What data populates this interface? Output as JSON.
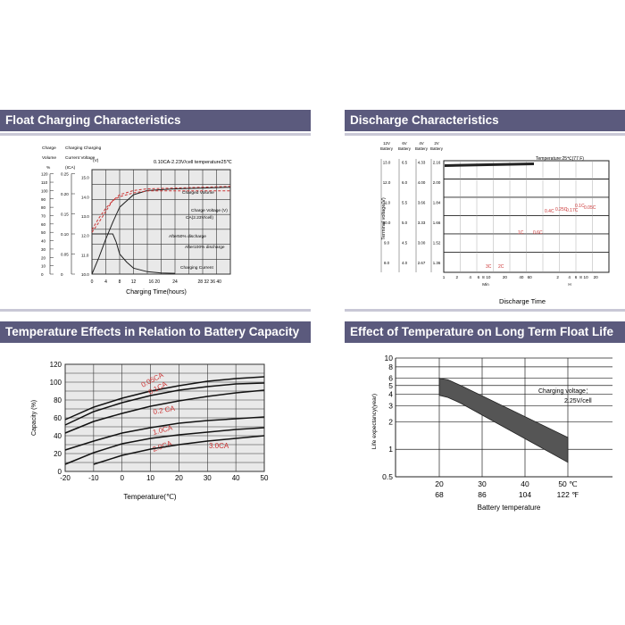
{
  "panels": [
    {
      "title": "Float Charging Characteristics",
      "chart_data": {
        "type": "line",
        "title": "0.10CA-2.23V/cell temperature25℃",
        "xlabel": "Charging Time(hours)",
        "x_ticks": [
          "0",
          "4",
          "8",
          "12",
          "16",
          "20",
          "24",
          "28",
          "32",
          "36",
          "40"
        ],
        "x_tick_labels": [
          "0",
          "4",
          "8",
          "12",
          "16 20",
          "24",
          "28 32 36 40"
        ],
        "left_axes": [
          {
            "label": [
              "Charge",
              "Volume",
              "%"
            ],
            "ticks": [
              "120",
              "110",
              "100",
              "90",
              "80",
              "70",
              "60",
              "50",
              "40",
              "30",
              "20",
              "10",
              "0"
            ]
          },
          {
            "label": [
              "Charging Charging",
              "Current Voltage",
              "(ICA)"
            ],
            "ticks": [
              "0.25",
              "0.20",
              "0.15",
              "0.10",
              "0.05",
              "0"
            ]
          },
          {
            "label": [
              "(V)"
            ],
            "ticks": [
              "15.0",
              "14.0",
              "13.0",
              "12.0",
              "11.0",
              "10.0"
            ]
          }
        ],
        "annotations": [
          "Charged Volume",
          "Charge Voltage (V)",
          "CA(2.23V/cell)",
          "After50% discharge",
          "After100% discharge",
          "Charging Current"
        ],
        "series": [
          {
            "name": "Charged Volume (after 50% discharge)",
            "x": [
              0,
              2,
              4,
              6,
              8,
              12,
              16,
              24,
              32,
              40
            ],
            "y": [
              50,
              62,
              75,
              88,
              95,
              100,
              102,
              103,
              104,
              105
            ]
          },
          {
            "name": "Charged Volume (after 100% discharge)",
            "x": [
              0,
              2,
              4,
              6,
              8,
              12,
              16,
              24,
              32,
              40
            ],
            "y": [
              0,
              20,
              42,
              62,
              80,
              95,
              100,
              102,
              103,
              104
            ]
          },
          {
            "name": "Charge Voltage",
            "x": [
              0,
              2,
              4,
              6,
              8,
              12,
              16,
              24,
              32,
              40
            ],
            "y": [
              12.3,
              12.9,
              13.4,
              13.8,
              14.0,
              14.2,
              14.3,
              14.3,
              14.3,
              14.3
            ]
          },
          {
            "name": "Charging Current",
            "x": [
              0,
              6,
              7,
              8,
              10,
              12,
              16,
              20,
              24
            ],
            "y": [
              0.1,
              0.1,
              0.08,
              0.05,
              0.03,
              0.015,
              0.006,
              0.003,
              0.002
            ]
          }
        ]
      }
    },
    {
      "title": "Discharge Characteristics",
      "chart_data": {
        "type": "line",
        "xlabel": "Discharge Time",
        "ylabel": "Terminal voltage(V)",
        "legend_text": "Temperature:25℃(77 F)",
        "voltage_columns": [
          {
            "header": [
              "12V",
              "Battery"
            ],
            "ticks": [
              "13.0",
              "12.0",
              "11.0",
              "10.0",
              "9.0",
              "8.0"
            ]
          },
          {
            "header": [
              "6V",
              "Battery"
            ],
            "ticks": [
              "6.5",
              "6.0",
              "5.5",
              "5.0",
              "4.5",
              "4.0"
            ]
          },
          {
            "header": [
              "4V",
              "Battery"
            ],
            "ticks": [
              "4.33",
              "4.00",
              "3.66",
              "3.33",
              "3.00",
              "2.67"
            ]
          },
          {
            "header": [
              "2V",
              "Battery"
            ],
            "ticks": [
              "2.16",
              "2.00",
              "1.84",
              "1.66",
              "1.52",
              "1.36"
            ]
          }
        ],
        "x_ticks": [
          "1",
          "2",
          "4",
          "6",
          "8",
          "10",
          "20",
          "40",
          "60",
          "2",
          "4",
          "6",
          "8",
          "10",
          "20"
        ],
        "x_units": [
          "Min",
          "H"
        ],
        "curve_labels": [
          "3C",
          "2C",
          "1C",
          "0.6C",
          "0.4C",
          "0.25C",
          "0.17C",
          "0.1C",
          "0.05C"
        ]
      }
    },
    {
      "title": "Temperature Effects in Relation to Battery Capacity",
      "chart_data": {
        "type": "line",
        "xlabel": "Temperature(℃)",
        "ylabel": "Capacity  (%)",
        "x_ticks": [
          "-20",
          "-10",
          "0",
          "10",
          "20",
          "30",
          "40",
          "50"
        ],
        "y_ticks": [
          "120",
          "100",
          "80",
          "60",
          "40",
          "20",
          "0"
        ],
        "xlim": [
          -20,
          50
        ],
        "ylim": [
          0,
          120
        ],
        "series": [
          {
            "name": "0.05CA",
            "x": [
              -20,
              -10,
              0,
              10,
              20,
              30,
              40,
              50
            ],
            "y": [
              58,
              72,
              82,
              90,
              96,
              101,
              104,
              106
            ]
          },
          {
            "name": "0.1CA",
            "x": [
              -20,
              -10,
              0,
              10,
              20,
              30,
              40,
              50
            ],
            "y": [
              52,
              67,
              77,
              85,
              91,
              95,
              98,
              99
            ]
          },
          {
            "name": "0.2 CA",
            "x": [
              -20,
              -10,
              0,
              10,
              20,
              30,
              40,
              50
            ],
            "y": [
              43,
              56,
              65,
              73,
              79,
              84,
              88,
              91
            ]
          },
          {
            "name": "1.0CA",
            "x": [
              -20,
              -10,
              0,
              10,
              20,
              30,
              40,
              50
            ],
            "y": [
              24,
              34,
              43,
              49,
              54,
              57,
              59,
              61
            ]
          },
          {
            "name": "2.0CA",
            "x": [
              -20,
              -10,
              0,
              10,
              20,
              30,
              40,
              50
            ],
            "y": [
              8,
              21,
              31,
              37,
              41,
              44,
              47,
              49
            ]
          },
          {
            "name": "3.0CA",
            "x": [
              -20,
              -10,
              0,
              10,
              20,
              30,
              40,
              50
            ],
            "y": [
              -4,
              8,
              18,
              25,
              30,
              34,
              37,
              40
            ]
          }
        ]
      }
    },
    {
      "title": "Effect of Temperature on Long Term Float Life",
      "chart_data": {
        "type": "area",
        "xlabel": "Battery temperature",
        "ylabel": "Life expectancy(year)",
        "x_ticks": [
          20,
          30,
          40,
          50
        ],
        "x_tick_labels_c": [
          "20",
          "30",
          "40",
          "50 ℃"
        ],
        "x_tick_labels_f": [
          "68",
          "86",
          "104",
          "122 ℉"
        ],
        "y_ticks": [
          "10",
          "8",
          "6",
          "5",
          "4",
          "3",
          "2",
          "1",
          "0.5"
        ],
        "y_scale": "log",
        "ylim": [
          0.5,
          10
        ],
        "annotation": [
          "Charging voltage：",
          "2.25V/cell"
        ],
        "band_upper": {
          "x": [
            20,
            22,
            25,
            50
          ],
          "y": [
            6.0,
            5.8,
            5.0,
            1.35
          ]
        },
        "band_lower": {
          "x": [
            20,
            22,
            25,
            50
          ],
          "y": [
            3.9,
            3.7,
            3.2,
            0.72
          ]
        }
      }
    }
  ]
}
